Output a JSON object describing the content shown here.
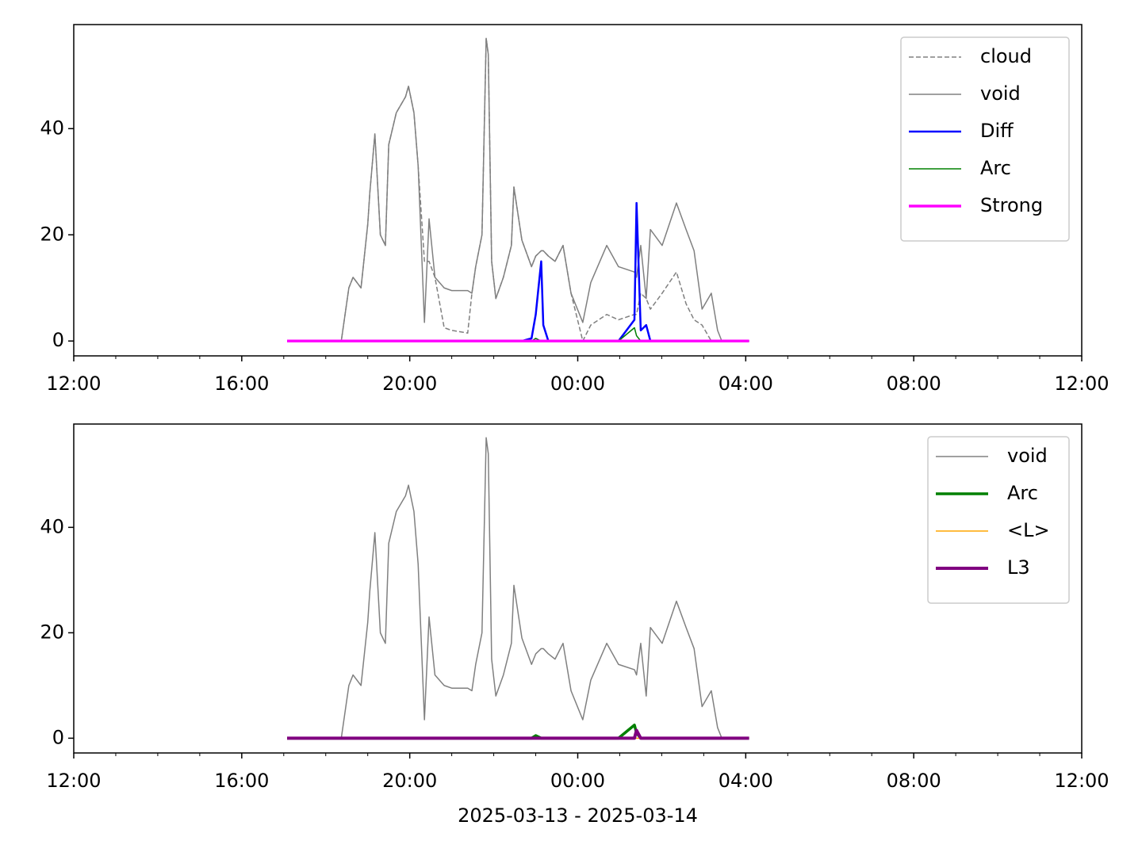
{
  "chart_data": [
    {
      "type": "line",
      "legend": "upper right",
      "x": [
        17.08,
        18.37,
        18.55,
        18.65,
        18.84,
        19.0,
        19.05,
        19.17,
        19.3,
        19.42,
        19.5,
        19.68,
        19.9,
        19.97,
        20.1,
        20.2,
        20.35,
        20.46,
        20.6,
        20.82,
        21.0,
        21.38,
        21.48,
        21.57,
        21.72,
        21.82,
        21.87,
        21.95,
        22.05,
        22.23,
        22.42,
        22.48,
        22.67,
        22.9,
        23.0,
        23.13,
        23.18,
        23.3,
        23.46,
        23.65,
        23.84,
        24.12,
        24.31,
        24.69,
        24.97,
        25.35,
        25.4,
        25.5,
        25.63,
        25.73,
        26.01,
        26.35,
        26.58,
        26.77,
        26.96,
        27.18,
        27.33,
        27.43,
        28.08
      ],
      "xlim": [
        12,
        36
      ],
      "xticks": [
        {
          "value": 12,
          "label": "12:00"
        },
        {
          "value": 16,
          "label": "16:00"
        },
        {
          "value": 20,
          "label": "20:00"
        },
        {
          "value": 24,
          "label": "00:00"
        },
        {
          "value": 28,
          "label": "04:00"
        },
        {
          "value": 32,
          "label": "08:00"
        },
        {
          "value": 36,
          "label": "12:00"
        }
      ],
      "xminorticks": [
        13,
        14,
        15,
        17,
        18,
        19,
        21,
        22,
        23,
        25,
        26,
        27,
        29,
        30,
        31,
        33,
        34,
        35
      ],
      "ylim": [
        -2.8,
        59.6
      ],
      "yticks": [
        0,
        20,
        40
      ],
      "series": [
        {
          "name": "cloud",
          "color": "#808080",
          "linestyle": "dashed",
          "linewidth": 1.5,
          "values": [
            0,
            0,
            10,
            12,
            10,
            22,
            28,
            39,
            20,
            18,
            37,
            43,
            46,
            48,
            43,
            33,
            15,
            15,
            12,
            2.5,
            2,
            1.5,
            9,
            14,
            20,
            57,
            54,
            15,
            8,
            12,
            18,
            29,
            19,
            14,
            16,
            17,
            17,
            16,
            15,
            18,
            9,
            0,
            3,
            5,
            4,
            5,
            5,
            9,
            8,
            6,
            9,
            13,
            7,
            4,
            3,
            0,
            0,
            0,
            0
          ]
        },
        {
          "name": "void",
          "color": "#808080",
          "linestyle": "solid",
          "linewidth": 1.5,
          "values": [
            0,
            0,
            10,
            12,
            10,
            22,
            28,
            39,
            20,
            18,
            37,
            43,
            46,
            48,
            43,
            33,
            3.5,
            23,
            12,
            10,
            9.5,
            9.5,
            9,
            14,
            20,
            57,
            54,
            15,
            8,
            12,
            18,
            29,
            19,
            14,
            16,
            17,
            17,
            16,
            15,
            18,
            9,
            3.5,
            11,
            18,
            14,
            13,
            12,
            18,
            8,
            21,
            18,
            26,
            21,
            17,
            6,
            9,
            2,
            0,
            0
          ]
        },
        {
          "name": "Diff",
          "color": "#0000ff",
          "linestyle": "solid",
          "linewidth": 2.5,
          "values": [
            0,
            0,
            0,
            0,
            0,
            0,
            0,
            0,
            0,
            0,
            0,
            0,
            0,
            0,
            0,
            0,
            0,
            0,
            0,
            0,
            0,
            0,
            0,
            0,
            0,
            0,
            0,
            0,
            0,
            0,
            0,
            0,
            0,
            0.5,
            5,
            15,
            3,
            0,
            0,
            0,
            0,
            0,
            0,
            0,
            0,
            4,
            26,
            2,
            3,
            0,
            0,
            0,
            0,
            0,
            0,
            0,
            0,
            0,
            0
          ]
        },
        {
          "name": "Arc",
          "color": "#008000",
          "linestyle": "solid",
          "linewidth": 1.5,
          "values": [
            0,
            0,
            0,
            0,
            0,
            0,
            0,
            0,
            0,
            0,
            0,
            0,
            0,
            0,
            0,
            0,
            0,
            0,
            0,
            0,
            0,
            0,
            0,
            0,
            0,
            0,
            0,
            0,
            0,
            0,
            0,
            0,
            0,
            0,
            0.5,
            0,
            0,
            0,
            0,
            0,
            0,
            0,
            0,
            0,
            0,
            2.5,
            1,
            0,
            0,
            0,
            0,
            0,
            0,
            0,
            0,
            0,
            0,
            0,
            0
          ]
        },
        {
          "name": "Strong",
          "color": "#ff00ff",
          "linestyle": "solid",
          "linewidth": 3.5,
          "values": [
            0,
            0,
            0,
            0,
            0,
            0,
            0,
            0,
            0,
            0,
            0,
            0,
            0,
            0,
            0,
            0,
            0,
            0,
            0,
            0,
            0,
            0,
            0,
            0,
            0,
            0,
            0,
            0,
            0,
            0,
            0,
            0,
            0,
            0,
            0,
            0,
            0,
            0,
            0,
            0,
            0,
            0,
            0,
            0,
            0,
            0,
            0,
            0,
            0,
            0,
            0,
            0,
            0,
            0,
            0,
            0,
            0,
            0,
            0
          ]
        }
      ]
    },
    {
      "type": "line",
      "legend": "upper right",
      "xlabel": "2025-03-13 - 2025-03-14",
      "x": [
        17.08,
        18.37,
        18.55,
        18.65,
        18.84,
        19.0,
        19.05,
        19.17,
        19.3,
        19.42,
        19.5,
        19.68,
        19.9,
        19.97,
        20.1,
        20.2,
        20.35,
        20.46,
        20.6,
        20.82,
        21.0,
        21.38,
        21.48,
        21.57,
        21.72,
        21.82,
        21.87,
        21.95,
        22.05,
        22.23,
        22.42,
        22.48,
        22.67,
        22.9,
        23.0,
        23.13,
        23.18,
        23.3,
        23.46,
        23.65,
        23.84,
        24.12,
        24.31,
        24.69,
        24.97,
        25.35,
        25.4,
        25.5,
        25.63,
        25.73,
        26.01,
        26.35,
        26.58,
        26.77,
        26.96,
        27.18,
        27.33,
        27.43,
        28.08
      ],
      "xlim": [
        12,
        36
      ],
      "xticks": [
        {
          "value": 12,
          "label": "12:00"
        },
        {
          "value": 16,
          "label": "16:00"
        },
        {
          "value": 20,
          "label": "20:00"
        },
        {
          "value": 24,
          "label": "00:00"
        },
        {
          "value": 28,
          "label": "04:00"
        },
        {
          "value": 32,
          "label": "08:00"
        },
        {
          "value": 36,
          "label": "12:00"
        }
      ],
      "xminorticks": [
        13,
        14,
        15,
        17,
        18,
        19,
        21,
        22,
        23,
        25,
        26,
        27,
        29,
        30,
        31,
        33,
        34,
        35
      ],
      "ylim": [
        -2.8,
        59.6
      ],
      "yticks": [
        0,
        20,
        40
      ],
      "series": [
        {
          "name": "void",
          "color": "#808080",
          "linestyle": "solid",
          "linewidth": 1.5,
          "values": [
            0,
            0,
            10,
            12,
            10,
            22,
            28,
            39,
            20,
            18,
            37,
            43,
            46,
            48,
            43,
            33,
            3.5,
            23,
            12,
            10,
            9.5,
            9.5,
            9,
            14,
            20,
            57,
            54,
            15,
            8,
            12,
            18,
            29,
            19,
            14,
            16,
            17,
            17,
            16,
            15,
            18,
            9,
            3.5,
            11,
            18,
            14,
            13,
            12,
            18,
            8,
            21,
            18,
            26,
            21,
            17,
            6,
            9,
            2,
            0,
            0
          ]
        },
        {
          "name": "Arc",
          "color": "#008000",
          "linestyle": "solid",
          "linewidth": 3.5,
          "values": [
            0,
            0,
            0,
            0,
            0,
            0,
            0,
            0,
            0,
            0,
            0,
            0,
            0,
            0,
            0,
            0,
            0,
            0,
            0,
            0,
            0,
            0,
            0,
            0,
            0,
            0,
            0,
            0,
            0,
            0,
            0,
            0,
            0,
            0,
            0.5,
            0,
            0,
            0,
            0,
            0,
            0,
            0,
            0,
            0,
            0,
            2.5,
            1,
            0,
            0,
            0,
            0,
            0,
            0,
            0,
            0,
            0,
            0,
            0,
            0
          ]
        },
        {
          "name": "<L>",
          "color": "#ffa500",
          "linestyle": "solid",
          "linewidth": 1.5,
          "values": [
            0,
            0,
            0,
            0,
            0,
            0,
            0,
            0,
            0,
            0,
            0,
            0,
            0,
            0,
            0,
            0,
            0,
            0,
            0,
            0,
            0,
            0,
            0,
            0,
            0,
            0,
            0,
            0,
            0,
            0,
            0,
            0,
            0,
            0,
            0,
            0,
            0,
            0,
            0,
            0,
            0,
            0,
            0,
            0,
            0,
            0,
            0,
            0,
            0,
            0,
            0,
            0,
            0,
            0,
            0,
            0,
            0,
            0,
            0
          ]
        },
        {
          "name": "L3",
          "color": "#800080",
          "linestyle": "solid",
          "linewidth": 4,
          "values": [
            0,
            0,
            0,
            0,
            0,
            0,
            0,
            0,
            0,
            0,
            0,
            0,
            0,
            0,
            0,
            0,
            0,
            0,
            0,
            0,
            0,
            0,
            0,
            0,
            0,
            0,
            0,
            0,
            0,
            0,
            0,
            0,
            0,
            0,
            0,
            0,
            0,
            0,
            0,
            0,
            0,
            0,
            0,
            0,
            0,
            0,
            1.5,
            0,
            0,
            0,
            0,
            0,
            0,
            0,
            0,
            0,
            0,
            0,
            0
          ]
        }
      ]
    }
  ]
}
